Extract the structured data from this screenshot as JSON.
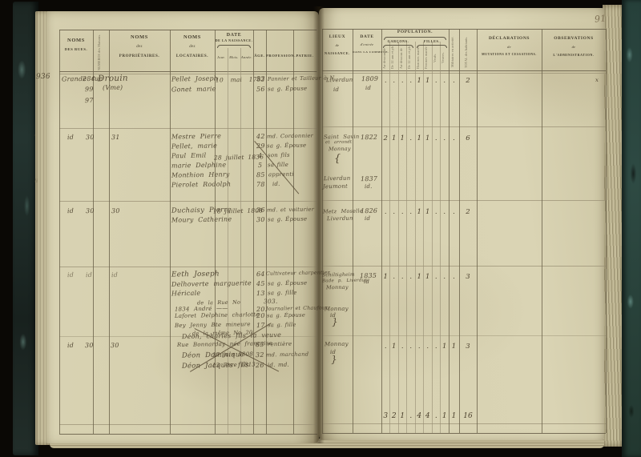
{
  "page_number": "91",
  "margin_number": "936",
  "stray": {
    "a": "’",
    "b": "li"
  },
  "headers": {
    "noms_rues_1": "NOMS",
    "noms_rues_2": "DES RUES.",
    "numeros_vertical": "NUMÉROS des Maisons.",
    "prop_1": "NOMS",
    "prop_2": "des",
    "prop_3": "PROPRIÉTAIRES.",
    "loc_1": "NOMS",
    "loc_2": "des",
    "loc_3": "LOCATAIRES.",
    "date_naiss_1": "DATE",
    "date_naiss_2": "DE LA NAISSANCE.",
    "jour": "Jour.",
    "mois": "Mois.",
    "annee": "Année.",
    "age": "ÂGE.",
    "profession": "PROFESSION.",
    "patrie": "PATRIE.",
    "lieux_1": "LIEUX",
    "lieux_2": "de",
    "lieux_3": "NAISSANCE.",
    "entree_1": "DATE",
    "entree_2": "d'entrée",
    "entree_3": "DANS LA COMMUNE.",
    "population": "POPULATION.",
    "garcons": "GARÇONS.",
    "filles": "FILLES.",
    "pop_vertical": [
      "Au-dessous de 12 ans.",
      "De 12 ans et plus.",
      "Au-dessous de 12 ans.",
      "De 12 ans et plus.",
      "Hommes mariés.",
      "Femmes mariées.",
      "Veufs.",
      "Veuves."
    ],
    "militaires": "Militaires en activité.",
    "total": "TOTAL des habitants.",
    "decl_1": "DÉCLARATIONS",
    "decl_2": "de",
    "decl_3": "MUTATIONS ET CESSATIONS.",
    "obs_1": "OBSERVATIONS",
    "obs_2": "de",
    "obs_3": "L'ADMINISTRATION."
  },
  "groups": [
    {
      "street": "Grande rue",
      "no1": "284",
      "no2": "99",
      "no3": "97",
      "proprietor": "Drouin",
      "proprietor2": "(Vme)",
      "tenants": [
        {
          "name": "Pellet Joseph",
          "age": "53",
          "prof": "Pannier et Tailleur à N."
        },
        {
          "name": "Gonet marie",
          "age": "56",
          "prof": "sa g. Épouse"
        }
      ],
      "birth": "10 mai 1782",
      "lieux": [
        "Liverdun",
        "id"
      ],
      "entree": [
        "1809",
        "id"
      ],
      "marks": [
        ".",
        ".",
        ".",
        ".",
        "1",
        "1",
        ".",
        ".",
        ".",
        "2"
      ],
      "obs": "x"
    },
    {
      "street": "id",
      "no1": "30",
      "no2": "31",
      "tenants": [
        {
          "name": "Mestre Pierre",
          "age": "42",
          "prof": "md. Cordonnier"
        },
        {
          "name": "Pellet, marie",
          "age": "29",
          "prof": "sa g. Épouse"
        },
        {
          "name": "Paul Emil",
          "age": "4",
          "prof": "son fils"
        },
        {
          "name": "marie Delphine",
          "age": "5",
          "prof": "sa fille"
        },
        {
          "name": "Monthion Henry",
          "age": "85",
          "prof": "apprenti"
        },
        {
          "name": "Pierolet Rodolph",
          "age": "78",
          "prof": "id."
        }
      ],
      "birth": "28 juillet 1836",
      "lieux": [
        "Saint Savin",
        "et arrondt",
        "Monnay",
        "Liverdun",
        "Jeumont"
      ],
      "entree": [
        "1822",
        "1837",
        "id."
      ],
      "marks": [
        "2",
        "1",
        "1",
        ".",
        "1",
        "1",
        ".",
        ".",
        ".",
        "6"
      ]
    },
    {
      "street": "id",
      "no1": "30",
      "no2": "30",
      "tenants": [
        {
          "name": "Duchaisy Pierre",
          "age": "36",
          "prof": "md. et voiturier"
        },
        {
          "name": "Moury Catherine",
          "age": "30",
          "prof": "sa g. Épouse"
        }
      ],
      "birth": "18 juillet 1808",
      "lieux": [
        "Metz Moselle",
        "Liverdun"
      ],
      "entree": [
        "1826",
        "id"
      ],
      "marks": [
        ".",
        ".",
        ".",
        ".",
        "1",
        "1",
        ".",
        ".",
        ".",
        "2"
      ]
    },
    {
      "street": "id",
      "no1": "id",
      "no2": "id",
      "tenants": [
        {
          "name": "Eeth Joseph",
          "age": "64",
          "prof": "Cultivateur charpentier"
        },
        {
          "name": "Delhoverte marguerite",
          "age": "45",
          "prof": "sa g. Épouse"
        },
        {
          "name": "Héricale",
          "age": "13",
          "prof": "sa g. fille"
        },
        {
          "name": "1834 André ——",
          "age": "20",
          "prof": "Journalier et Chaufour."
        },
        {
          "name": "Laforet Delphine charlotte",
          "age": "20",
          "prof": "sa g. Épouse"
        },
        {
          "name": "Bey Jenny Bte mineure",
          "age": "17",
          "prof": "sa g. fille"
        }
      ],
      "note1": "de la Rue No",
      "note1_no": "303.",
      "note2": "de la même No 20",
      "lieux": [
        "Schiltigheim",
        "Bade p. Liverdun",
        "Monnay",
        "Monnay",
        "id"
      ],
      "entree": [
        "1835",
        "id"
      ],
      "marks": [
        "1",
        ".",
        ".",
        ".",
        "1",
        "1",
        ".",
        ".",
        ".",
        "3"
      ]
    },
    {
      "street": "id",
      "no1": "30",
      "no2": "30",
      "lines": [
        {
          "name": "Déon, charles fils la veuve"
        },
        {
          "name": "Rue Bonnarday née française",
          "age": "83",
          "prof": "rentière"
        },
        {
          "name": "Déon Dominique",
          "birth": "17 juin 1808",
          "age": "32",
          "prof": "md. marchand"
        },
        {
          "name": "Déon Jacques fils",
          "birth": "13 7bre 1813",
          "age": "26",
          "prof": "id. md."
        }
      ],
      "lieux": [
        "Monnay",
        "id"
      ],
      "marks": [
        ".",
        "1",
        ".",
        ".",
        ".",
        ".",
        ".",
        "1",
        "1",
        "3"
      ]
    }
  ],
  "totals": [
    "3",
    "2",
    "1",
    ".",
    "4",
    "4",
    ".",
    "1",
    "1",
    "16"
  ]
}
